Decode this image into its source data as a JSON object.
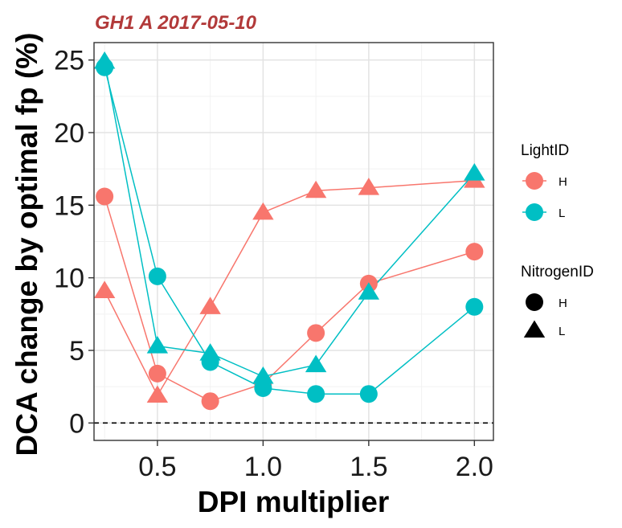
{
  "chart_data": {
    "type": "line",
    "title": "GH1 A 2017-05-10",
    "xlabel": "DPI multiplier",
    "ylabel": "DCA change by optimal fp (%)",
    "xlim": [
      0.2,
      2.09
    ],
    "ylim": [
      -1.2,
      26.2
    ],
    "xticks": [
      0.5,
      1.0,
      1.5,
      2.0
    ],
    "xtick_labels": [
      "0.5",
      "1.0",
      "1.5",
      "2.0"
    ],
    "yticks": [
      0,
      5,
      10,
      15,
      20,
      25
    ],
    "ytick_labels": [
      "0",
      "5",
      "10",
      "15",
      "20",
      "25"
    ],
    "grid": true,
    "reference_line": {
      "y": 0,
      "style": "dashed"
    },
    "legend_placement": "right",
    "legends": [
      {
        "title": "LightID",
        "items": [
          {
            "label": "H",
            "color": "#F8766D"
          },
          {
            "label": "L",
            "color": "#00BFC4"
          }
        ]
      },
      {
        "title": "NitrogenID",
        "items": [
          {
            "label": "H",
            "shape": "circle"
          },
          {
            "label": "L",
            "shape": "triangle"
          }
        ]
      }
    ],
    "series": [
      {
        "light": "H",
        "nitrogen": "H",
        "color": "#F8766D",
        "shape": "circle",
        "x": [
          0.25,
          0.5,
          0.75,
          1.0,
          1.25,
          1.5,
          2.0
        ],
        "y": [
          15.6,
          3.4,
          1.5,
          2.7,
          6.2,
          9.6,
          11.8
        ]
      },
      {
        "light": "H",
        "nitrogen": "L",
        "color": "#F8766D",
        "shape": "triangle",
        "x": [
          0.25,
          0.5,
          0.75,
          1.0,
          1.25,
          1.5,
          2.0
        ],
        "y": [
          9.1,
          1.9,
          8.0,
          14.5,
          16.0,
          16.2,
          16.7
        ]
      },
      {
        "light": "L",
        "nitrogen": "H",
        "color": "#00BFC4",
        "shape": "circle",
        "x": [
          0.25,
          0.5,
          0.75,
          1.0,
          1.25,
          1.5,
          2.0
        ],
        "y": [
          24.5,
          10.1,
          4.2,
          2.4,
          2.0,
          2.0,
          8.0
        ]
      },
      {
        "light": "L",
        "nitrogen": "L",
        "color": "#00BFC4",
        "shape": "triangle",
        "x": [
          0.25,
          0.5,
          0.75,
          1.0,
          1.25,
          1.5,
          2.0
        ],
        "y": [
          24.9,
          5.3,
          4.8,
          3.2,
          4.0,
          9.0,
          17.2
        ]
      }
    ]
  }
}
